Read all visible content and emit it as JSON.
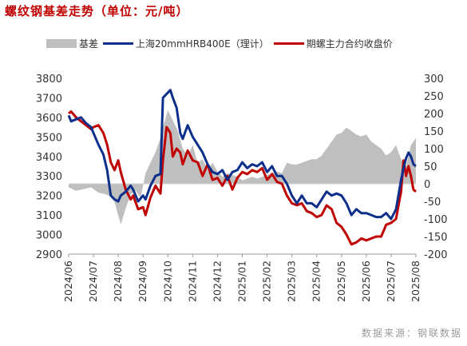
{
  "title": "螺纹钢基差走势（单位：元/吨）",
  "source": "数据来源：钢联数据",
  "colors": {
    "basis": "#bfbfbf",
    "spot": "#0b2f8a",
    "futures": "#c00000"
  },
  "chart_data": {
    "type": "line",
    "y_left": {
      "min": 2900,
      "max": 3800,
      "ticks": [
        3800,
        3700,
        3600,
        3500,
        3400,
        3300,
        3200,
        3100,
        3000,
        2900
      ]
    },
    "y_right": {
      "min": -200,
      "max": 300,
      "ticks": [
        300,
        250,
        200,
        150,
        100,
        50,
        0,
        -50,
        -100,
        -150,
        -200
      ]
    },
    "x_ticks": [
      "2024/06",
      "2024/07",
      "2024/08",
      "2024/09",
      "2024/10",
      "2024/11",
      "2024/12",
      "2025/01",
      "2025/02",
      "2025/03",
      "2025/04",
      "2025/05",
      "2025/06",
      "2025/07",
      "2025/08"
    ],
    "x_range": [
      0,
      14
    ],
    "legend": [
      "基差",
      "上海20mmHRB400E（理计）",
      "期螺主力合约收盘价"
    ],
    "series": [
      {
        "name": "上海20mmHRB400E（理计）",
        "axis": "left",
        "x": [
          0,
          0.1,
          0.3,
          0.5,
          0.7,
          0.9,
          1.0,
          1.2,
          1.4,
          1.55,
          1.7,
          1.85,
          2.0,
          2.1,
          2.3,
          2.5,
          2.6,
          2.8,
          3.0,
          3.1,
          3.3,
          3.5,
          3.7,
          3.8,
          3.95,
          4.1,
          4.2,
          4.35,
          4.5,
          4.6,
          4.8,
          5.0,
          5.2,
          5.4,
          5.6,
          5.8,
          6.0,
          6.2,
          6.4,
          6.6,
          6.8,
          7.0,
          7.2,
          7.4,
          7.6,
          7.8,
          8.0,
          8.2,
          8.4,
          8.6,
          8.8,
          9.0,
          9.2,
          9.4,
          9.6,
          9.8,
          10.0,
          10.2,
          10.4,
          10.6,
          10.8,
          11.0,
          11.2,
          11.4,
          11.6,
          11.8,
          12.0,
          12.2,
          12.4,
          12.6,
          12.8,
          13.0,
          13.2,
          13.4,
          13.5,
          13.6,
          13.7,
          13.8,
          13.9,
          14.0
        ],
        "values": [
          3610,
          3580,
          3590,
          3600,
          3570,
          3550,
          3520,
          3460,
          3410,
          3330,
          3200,
          3180,
          3170,
          3200,
          3220,
          3250,
          3230,
          3170,
          3200,
          3180,
          3250,
          3300,
          3310,
          3700,
          3720,
          3740,
          3700,
          3650,
          3520,
          3490,
          3560,
          3500,
          3460,
          3420,
          3360,
          3320,
          3310,
          3330,
          3280,
          3320,
          3330,
          3370,
          3340,
          3360,
          3350,
          3370,
          3320,
          3350,
          3300,
          3300,
          3260,
          3200,
          3160,
          3200,
          3160,
          3160,
          3140,
          3180,
          3220,
          3200,
          3210,
          3200,
          3160,
          3100,
          3130,
          3110,
          3110,
          3100,
          3090,
          3090,
          3110,
          3080,
          3130,
          3280,
          3340,
          3390,
          3420,
          3400,
          3360,
          3350
        ]
      },
      {
        "name": "期螺主力合约收盘价",
        "axis": "left",
        "x": [
          0,
          0.1,
          0.3,
          0.5,
          0.7,
          0.9,
          1.0,
          1.2,
          1.4,
          1.55,
          1.7,
          1.85,
          2.0,
          2.1,
          2.3,
          2.5,
          2.6,
          2.8,
          3.0,
          3.1,
          3.3,
          3.5,
          3.7,
          3.8,
          3.95,
          4.1,
          4.2,
          4.35,
          4.5,
          4.6,
          4.8,
          5.0,
          5.2,
          5.4,
          5.6,
          5.8,
          6.0,
          6.2,
          6.4,
          6.6,
          6.8,
          7.0,
          7.2,
          7.4,
          7.6,
          7.8,
          8.0,
          8.2,
          8.4,
          8.6,
          8.8,
          9.0,
          9.2,
          9.4,
          9.6,
          9.8,
          10.0,
          10.2,
          10.4,
          10.6,
          10.8,
          11.0,
          11.2,
          11.4,
          11.6,
          11.8,
          12.0,
          12.2,
          12.4,
          12.6,
          12.8,
          13.0,
          13.2,
          13.4,
          13.5,
          13.6,
          13.7,
          13.8,
          13.9,
          14.0
        ],
        "values": [
          3620,
          3630,
          3600,
          3580,
          3560,
          3540,
          3550,
          3560,
          3520,
          3460,
          3370,
          3330,
          3380,
          3320,
          3230,
          3180,
          3200,
          3130,
          3140,
          3100,
          3190,
          3250,
          3210,
          3380,
          3550,
          3520,
          3400,
          3440,
          3420,
          3360,
          3430,
          3380,
          3370,
          3300,
          3360,
          3280,
          3290,
          3250,
          3300,
          3230,
          3290,
          3320,
          3310,
          3330,
          3320,
          3340,
          3280,
          3310,
          3270,
          3260,
          3200,
          3160,
          3150,
          3160,
          3120,
          3110,
          3090,
          3100,
          3150,
          3130,
          3060,
          3040,
          3000,
          2950,
          2960,
          2980,
          2970,
          2980,
          2990,
          2990,
          3050,
          3060,
          3080,
          3220,
          3380,
          3300,
          3350,
          3300,
          3230,
          3220
        ]
      },
      {
        "name": "基差",
        "axis": "right",
        "x": [
          0,
          0.3,
          0.6,
          0.9,
          1.2,
          1.5,
          1.8,
          2.0,
          2.1,
          2.3,
          2.5,
          2.7,
          2.9,
          3.1,
          3.3,
          3.5,
          3.7,
          3.8,
          4.0,
          4.2,
          4.4,
          4.6,
          4.8,
          5.0,
          5.2,
          5.4,
          5.6,
          5.8,
          6.0,
          6.2,
          6.4,
          6.6,
          6.8,
          7.0,
          7.2,
          7.4,
          7.6,
          7.8,
          8.0,
          8.2,
          8.4,
          8.6,
          8.8,
          9.0,
          9.2,
          9.4,
          9.6,
          9.8,
          10.0,
          10.2,
          10.4,
          10.6,
          10.8,
          11.0,
          11.2,
          11.4,
          11.6,
          11.8,
          12.0,
          12.2,
          12.4,
          12.6,
          12.8,
          13.0,
          13.2,
          13.4,
          13.6,
          13.8,
          14.0
        ],
        "values": [
          -10,
          -20,
          -15,
          -10,
          -25,
          -30,
          -40,
          -90,
          -115,
          -70,
          -30,
          -20,
          -40,
          30,
          60,
          90,
          130,
          160,
          210,
          180,
          150,
          100,
          80,
          110,
          60,
          70,
          40,
          60,
          35,
          20,
          30,
          25,
          20,
          10,
          15,
          20,
          15,
          20,
          25,
          30,
          35,
          30,
          60,
          55,
          55,
          60,
          65,
          70,
          70,
          80,
          100,
          120,
          140,
          145,
          160,
          150,
          140,
          135,
          140,
          120,
          110,
          100,
          80,
          90,
          110,
          70,
          50,
          110,
          130
        ]
      }
    ]
  }
}
